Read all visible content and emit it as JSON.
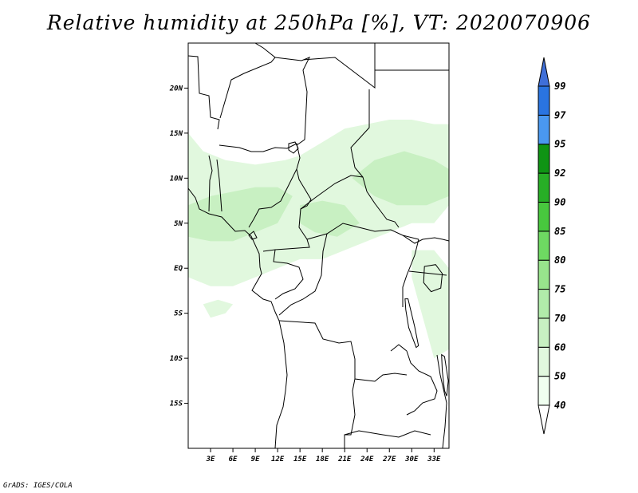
{
  "title": "Relative humidity at 250hPa [%], VT: 2020070906",
  "credit": "GrADS: IGES/COLA",
  "map": {
    "lon_range": [
      0,
      35
    ],
    "lat_range": [
      -20,
      25
    ],
    "lat_ticks": [
      {
        "value": 20,
        "label": "20N"
      },
      {
        "value": 15,
        "label": "15N"
      },
      {
        "value": 10,
        "label": "10N"
      },
      {
        "value": 5,
        "label": "5N"
      },
      {
        "value": 0,
        "label": "EQ"
      },
      {
        "value": -5,
        "label": "5S"
      },
      {
        "value": -10,
        "label": "10S"
      },
      {
        "value": -15,
        "label": "15S"
      }
    ],
    "lon_ticks": [
      {
        "value": 3,
        "label": "3E"
      },
      {
        "value": 6,
        "label": "6E"
      },
      {
        "value": 9,
        "label": "9E"
      },
      {
        "value": 12,
        "label": "12E"
      },
      {
        "value": 15,
        "label": "15E"
      },
      {
        "value": 18,
        "label": "18E"
      },
      {
        "value": 21,
        "label": "21E"
      },
      {
        "value": 24,
        "label": "24E"
      },
      {
        "value": 27,
        "label": "27E"
      },
      {
        "value": 30,
        "label": "30E"
      },
      {
        "value": 33,
        "label": "33E"
      }
    ],
    "humid_regions": [
      {
        "name": "west-african-band",
        "level": 50,
        "points": [
          [
            0,
            15
          ],
          [
            2,
            13
          ],
          [
            5,
            12
          ],
          [
            9,
            11.5
          ],
          [
            13,
            12
          ],
          [
            15,
            12.5
          ],
          [
            18,
            14
          ],
          [
            21,
            15.5
          ],
          [
            24,
            16
          ],
          [
            27,
            16.5
          ],
          [
            30,
            16.5
          ],
          [
            33,
            16
          ],
          [
            35,
            16
          ],
          [
            35,
            7
          ],
          [
            33,
            5
          ],
          [
            30,
            5
          ],
          [
            27,
            4
          ],
          [
            24,
            3
          ],
          [
            21,
            2
          ],
          [
            18,
            1
          ],
          [
            15,
            1
          ],
          [
            12,
            0
          ],
          [
            9,
            -1
          ],
          [
            6,
            -2
          ],
          [
            3,
            -2
          ],
          [
            0,
            -1
          ]
        ]
      },
      {
        "name": "south-west-patch",
        "level": 50,
        "points": [
          [
            2,
            -4
          ],
          [
            4,
            -3.5
          ],
          [
            6,
            -4
          ],
          [
            5,
            -5
          ],
          [
            3,
            -5.5
          ]
        ]
      },
      {
        "name": "lake-victoria-patch",
        "level": 50,
        "points": [
          [
            30,
            2
          ],
          [
            33,
            2
          ],
          [
            35,
            0
          ],
          [
            35,
            -9
          ],
          [
            33,
            -10
          ],
          [
            32,
            -7
          ],
          [
            31,
            -4
          ],
          [
            30,
            -1
          ]
        ]
      },
      {
        "name": "core-west",
        "level": 60,
        "points": [
          [
            0,
            7
          ],
          [
            3,
            8
          ],
          [
            6,
            8.5
          ],
          [
            9,
            9
          ],
          [
            12,
            9
          ],
          [
            14,
            8
          ],
          [
            12,
            5
          ],
          [
            9,
            4
          ],
          [
            6,
            3
          ],
          [
            3,
            3
          ],
          [
            0,
            3.5
          ]
        ]
      },
      {
        "name": "core-east",
        "level": 60,
        "points": [
          [
            22,
            10
          ],
          [
            25,
            12
          ],
          [
            29,
            13
          ],
          [
            33,
            12
          ],
          [
            35,
            11
          ],
          [
            35,
            8
          ],
          [
            32,
            7
          ],
          [
            28,
            7
          ],
          [
            25,
            8
          ]
        ]
      },
      {
        "name": "core-central",
        "level": 60,
        "points": [
          [
            15,
            7
          ],
          [
            18,
            7.5
          ],
          [
            21,
            7
          ],
          [
            23,
            5
          ],
          [
            20,
            3.5
          ],
          [
            17,
            4
          ],
          [
            15,
            5
          ]
        ]
      }
    ],
    "lakes": [
      {
        "name": "lake-victoria",
        "points": [
          [
            31.7,
            0.2
          ],
          [
            33.2,
            0.4
          ],
          [
            34.1,
            -0.6
          ],
          [
            33.9,
            -2.2
          ],
          [
            32.6,
            -2.6
          ],
          [
            31.6,
            -1.6
          ]
        ]
      },
      {
        "name": "lake-tanganyika",
        "points": [
          [
            29.1,
            -3.4
          ],
          [
            29.5,
            -3.4
          ],
          [
            30.4,
            -6.5
          ],
          [
            30.9,
            -8.6
          ],
          [
            30.6,
            -8.8
          ],
          [
            29.6,
            -6.6
          ],
          [
            29.2,
            -4.6
          ]
        ]
      },
      {
        "name": "lake-malawi",
        "points": [
          [
            34.0,
            -9.6
          ],
          [
            34.4,
            -9.8
          ],
          [
            34.9,
            -12.5
          ],
          [
            34.7,
            -14.2
          ],
          [
            34.4,
            -13.6
          ],
          [
            34.1,
            -11.4
          ]
        ]
      }
    ]
  },
  "colorbar": {
    "levels": [
      {
        "label": "40",
        "color": "#f0fff0"
      },
      {
        "label": "50",
        "color": "#e1f8de"
      },
      {
        "label": "60",
        "color": "#c8f0c2"
      },
      {
        "label": "70",
        "color": "#b1ebaa"
      },
      {
        "label": "75",
        "color": "#98e48c"
      },
      {
        "label": "80",
        "color": "#6ed962"
      },
      {
        "label": "85",
        "color": "#48c83e"
      },
      {
        "label": "90",
        "color": "#27ae26"
      },
      {
        "label": "92",
        "color": "#0f9414"
      },
      {
        "label": "95",
        "color": "#4a98f0"
      },
      {
        "label": "97",
        "color": "#2a74e0"
      },
      {
        "label": "99",
        "color": "#1e5ad2"
      }
    ],
    "under_color": "#ffffff",
    "over_color": "#3f6fd8"
  }
}
